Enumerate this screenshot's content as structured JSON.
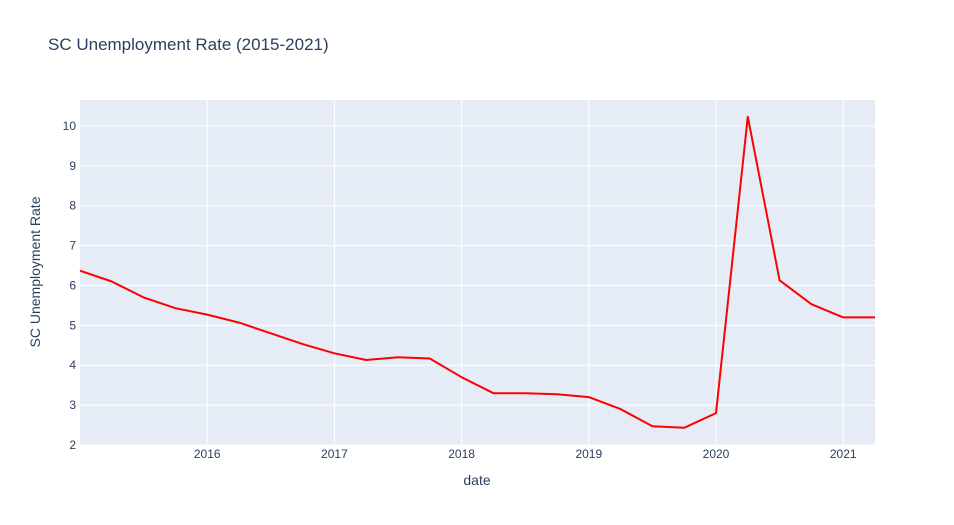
{
  "colors": {
    "plot_bg": "#e5ecf6",
    "grid": "#ffffff",
    "line": "#ff0000",
    "text": "#2a3f5f"
  },
  "chart_data": {
    "type": "line",
    "title": "SC Unemployment Rate (2015-2021)",
    "xlabel": "date",
    "ylabel": "SC Unemployment Rate",
    "xlim": [
      2015.0,
      2021.25
    ],
    "ylim": [
      2,
      10.65
    ],
    "x_ticks": [
      {
        "value": 2016,
        "label": "2016"
      },
      {
        "value": 2017,
        "label": "2017"
      },
      {
        "value": 2018,
        "label": "2018"
      },
      {
        "value": 2019,
        "label": "2019"
      },
      {
        "value": 2020,
        "label": "2020"
      },
      {
        "value": 2021,
        "label": "2021"
      }
    ],
    "y_ticks": [
      {
        "value": 2,
        "label": "2"
      },
      {
        "value": 3,
        "label": "3"
      },
      {
        "value": 4,
        "label": "4"
      },
      {
        "value": 5,
        "label": "5"
      },
      {
        "value": 6,
        "label": "6"
      },
      {
        "value": 7,
        "label": "7"
      },
      {
        "value": 8,
        "label": "8"
      },
      {
        "value": 9,
        "label": "9"
      },
      {
        "value": 10,
        "label": "10"
      }
    ],
    "series": [
      {
        "name": "SC Unemployment Rate",
        "x": [
          2015.0,
          2015.25,
          2015.5,
          2015.75,
          2016.0,
          2016.25,
          2016.5,
          2016.75,
          2017.0,
          2017.25,
          2017.5,
          2017.75,
          2018.0,
          2018.25,
          2018.5,
          2018.75,
          2019.0,
          2019.25,
          2019.5,
          2019.75,
          2020.0,
          2020.25,
          2020.5,
          2020.75,
          2021.0,
          2021.25
        ],
        "values": [
          6.37,
          6.1,
          5.7,
          5.43,
          5.27,
          5.07,
          4.8,
          4.53,
          4.3,
          4.13,
          4.2,
          4.17,
          3.7,
          3.3,
          3.3,
          3.27,
          3.2,
          2.9,
          2.47,
          2.43,
          2.8,
          10.23,
          6.13,
          5.53,
          5.2,
          5.2
        ]
      }
    ]
  }
}
